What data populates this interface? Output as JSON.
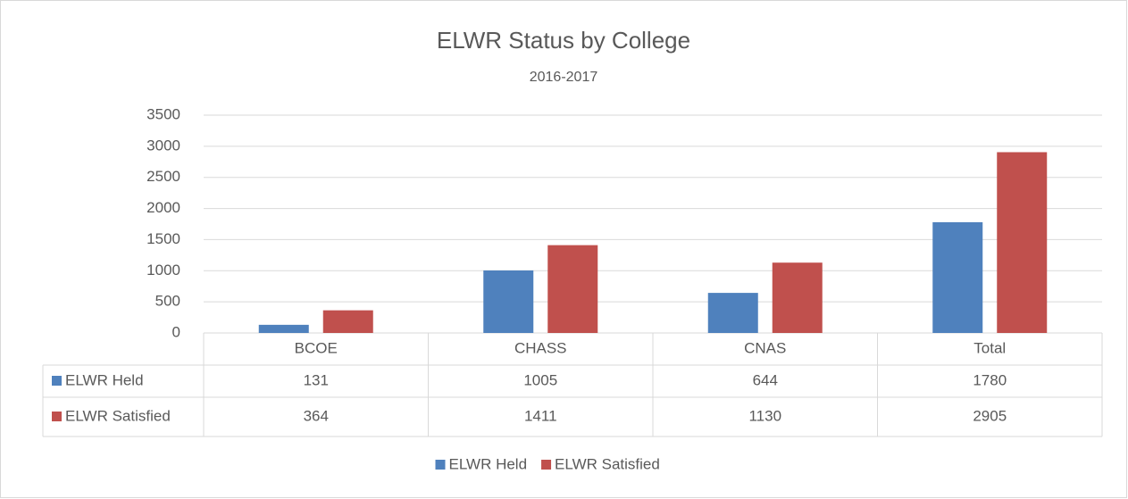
{
  "chart_data": {
    "type": "bar",
    "title": "ELWR Status by College",
    "subtitle": "2016-2017",
    "categories": [
      "BCOE",
      "CHASS",
      "CNAS",
      "Total"
    ],
    "series": [
      {
        "name": "ELWR Held",
        "color": "#4f81bd",
        "values": [
          131,
          1005,
          644,
          1780
        ]
      },
      {
        "name": "ELWR Satisfied",
        "color": "#c0504d",
        "values": [
          364,
          1411,
          1130,
          2905
        ]
      }
    ],
    "ylim": [
      0,
      3500
    ],
    "yticks": [
      0,
      500,
      1000,
      1500,
      2000,
      2500,
      3000,
      3500
    ],
    "grid": true,
    "legend": "bottom",
    "data_table": true
  }
}
